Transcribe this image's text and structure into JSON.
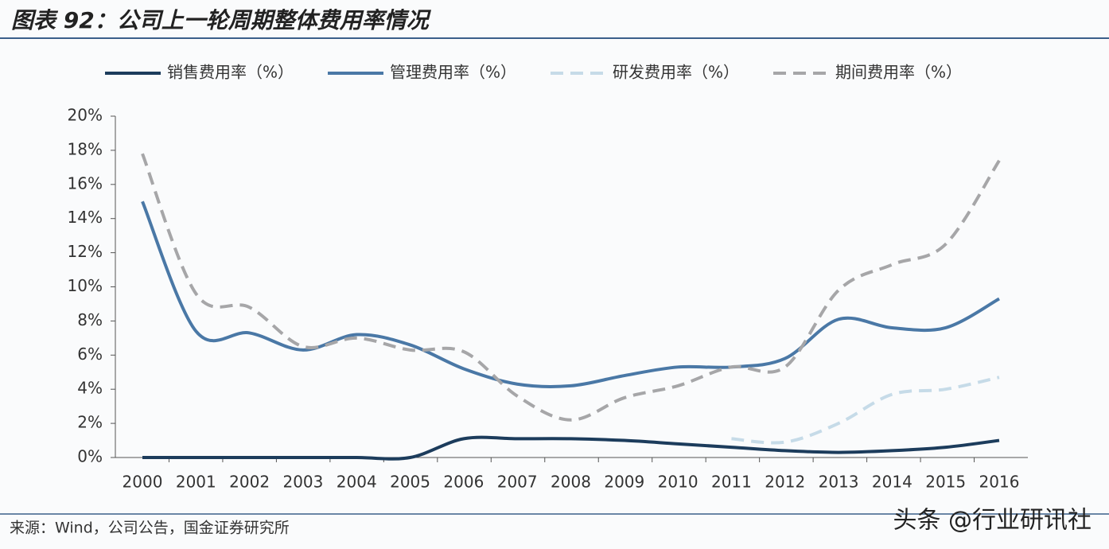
{
  "chart_data": {
    "type": "line",
    "title": "图表 92：公司上一轮周期整体费用率情况",
    "source": "来源：Wind，公司公告，国金证券研究所",
    "watermark": "头条 @行业研讯社",
    "categories": [
      "2000",
      "2001",
      "2002",
      "2003",
      "2004",
      "2005",
      "2006",
      "2007",
      "2008",
      "2009",
      "2010",
      "2011",
      "2012",
      "2013",
      "2014",
      "2015",
      "2016"
    ],
    "series": [
      {
        "name": "销售费用率（%）",
        "color": "#1c3c5c",
        "style": "solid",
        "values": [
          0,
          0,
          0,
          0,
          0,
          0,
          1.1,
          1.1,
          1.1,
          1.0,
          0.8,
          0.6,
          0.4,
          0.3,
          0.4,
          0.6,
          1.0
        ]
      },
      {
        "name": "管理费用率（%）",
        "color": "#4a78a6",
        "style": "solid",
        "values": [
          15.0,
          7.4,
          7.3,
          6.3,
          7.2,
          6.6,
          5.2,
          4.3,
          4.2,
          4.8,
          5.3,
          5.3,
          5.8,
          8.1,
          7.6,
          7.6,
          9.3
        ]
      },
      {
        "name": "研发费用率（%）",
        "color": "#c6dbe8",
        "style": "dashed",
        "values": [
          null,
          null,
          null,
          null,
          null,
          null,
          null,
          null,
          null,
          null,
          null,
          1.1,
          0.9,
          2.0,
          3.7,
          4.0,
          4.7
        ]
      },
      {
        "name": "期间费用率（%）",
        "color": "#a6a6a8",
        "style": "dashed",
        "values": [
          17.8,
          9.6,
          8.8,
          6.5,
          7.0,
          6.3,
          6.2,
          3.6,
          2.2,
          3.5,
          4.2,
          5.3,
          5.3,
          9.8,
          11.3,
          12.5,
          17.4
        ]
      }
    ],
    "ylim": [
      0,
      20
    ],
    "yticks": [
      {
        "value": 0,
        "label": "0%"
      },
      {
        "value": 2,
        "label": "2%"
      },
      {
        "value": 4,
        "label": "4%"
      },
      {
        "value": 6,
        "label": "6%"
      },
      {
        "value": 8,
        "label": "8%"
      },
      {
        "value": 10,
        "label": "10%"
      },
      {
        "value": 12,
        "label": "12%"
      },
      {
        "value": 14,
        "label": "14%"
      },
      {
        "value": 16,
        "label": "16%"
      },
      {
        "value": 18,
        "label": "18%"
      },
      {
        "value": 20,
        "label": "20%"
      }
    ],
    "grid": false,
    "legend": "top",
    "smooth": true
  }
}
